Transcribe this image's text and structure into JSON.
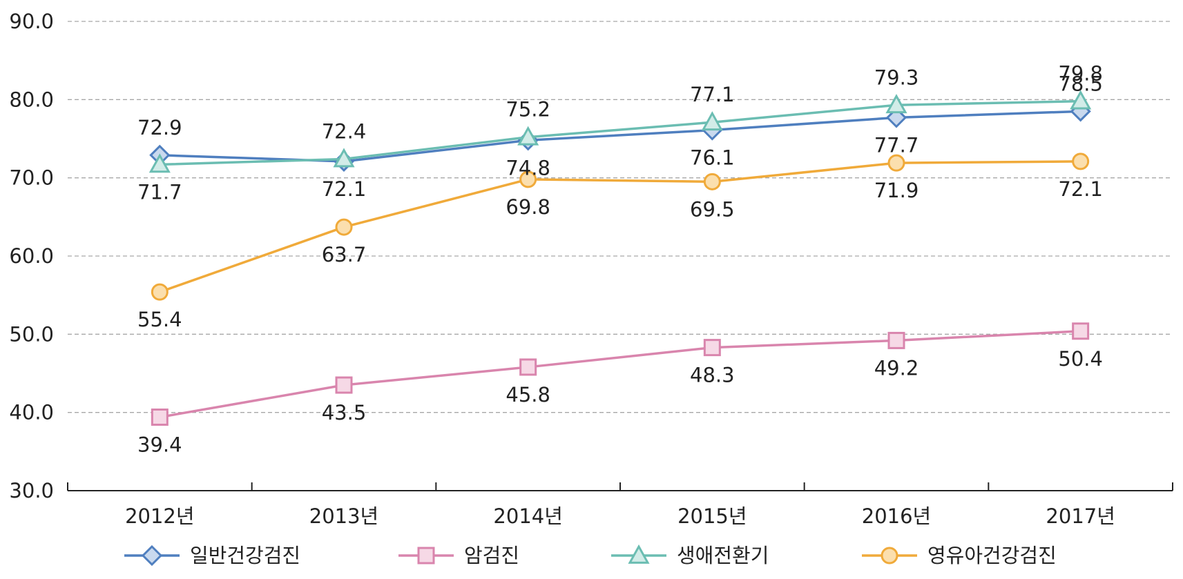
{
  "chart_data": {
    "type": "line",
    "title": "",
    "xlabel": "",
    "ylabel": "",
    "ylim": [
      30,
      90
    ],
    "yticks": [
      "30.0",
      "40.0",
      "50.0",
      "60.0",
      "70.0",
      "80.0",
      "90.0"
    ],
    "grid": true,
    "legend_position": "bottom",
    "categories": [
      "2012년",
      "2013년",
      "2014년",
      "2015년",
      "2016년",
      "2017년"
    ],
    "series": [
      {
        "name": "일반건강검진",
        "marker": "diamond",
        "color": "#4f7fbf",
        "fill": "#c9d9ee",
        "values": [
          72.9,
          72.1,
          74.8,
          76.1,
          77.7,
          78.5
        ],
        "labels": [
          "72.9",
          "72.1",
          "74.8",
          "76.1",
          "77.7",
          "78.5"
        ],
        "label_pos": [
          "above",
          "below",
          "below",
          "below",
          "below",
          "above"
        ]
      },
      {
        "name": "암검진",
        "marker": "square",
        "color": "#d985ad",
        "fill": "#f6d9e6",
        "values": [
          39.4,
          43.5,
          45.8,
          48.3,
          49.2,
          50.4
        ],
        "labels": [
          "39.4",
          "43.5",
          "45.8",
          "48.3",
          "49.2",
          "50.4"
        ],
        "label_pos": [
          "below",
          "below",
          "below",
          "below",
          "below",
          "below"
        ]
      },
      {
        "name": "생애전환기",
        "marker": "triangle",
        "color": "#6bbdb2",
        "fill": "#d2ece8",
        "values": [
          71.7,
          72.4,
          75.2,
          77.1,
          79.3,
          79.8
        ],
        "labels": [
          "71.7",
          "72.4",
          "75.2",
          "77.1",
          "79.3",
          "79.8"
        ],
        "label_pos": [
          "below",
          "above",
          "above",
          "above",
          "above",
          "above"
        ]
      },
      {
        "name": "영유아건강검진",
        "marker": "circle",
        "color": "#f0aa3a",
        "fill": "#fbdfae",
        "values": [
          55.4,
          63.7,
          69.8,
          69.5,
          71.9,
          72.1
        ],
        "labels": [
          "55.4",
          "63.7",
          "69.8",
          "69.5",
          "71.9",
          "72.1"
        ],
        "label_pos": [
          "below",
          "below",
          "below",
          "below",
          "below",
          "below"
        ]
      }
    ]
  }
}
